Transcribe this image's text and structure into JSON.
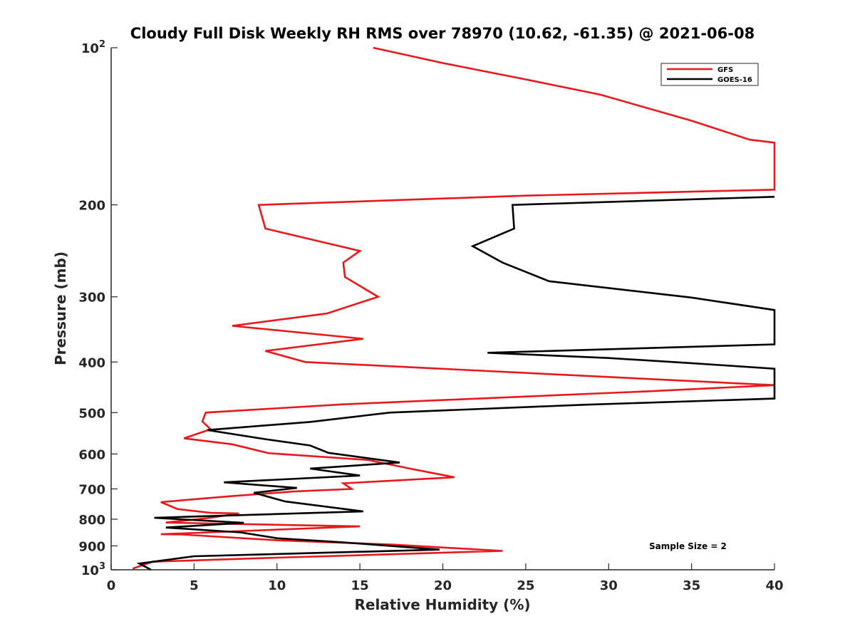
{
  "chart_data": {
    "type": "line",
    "title": "Cloudy Full Disk Weekly RH RMS over 78970 (10.62, -61.35) @ 2021-06-08",
    "xlabel": "Relative Humidity (%)",
    "ylabel": "Pressure (mb)",
    "xlim": [
      0,
      40
    ],
    "ylim": [
      100,
      1000
    ],
    "y_scale": "log",
    "y_reversed": true,
    "grid": false,
    "legend_position": "top-right",
    "x_ticks": [
      0,
      5,
      10,
      15,
      20,
      25,
      30,
      35,
      40
    ],
    "y_ticks": [
      {
        "value": 100,
        "base": "10",
        "exp": "2"
      },
      {
        "value": 200,
        "label": "200"
      },
      {
        "value": 300,
        "label": "300"
      },
      {
        "value": 400,
        "label": "400"
      },
      {
        "value": 500,
        "label": "500"
      },
      {
        "value": 600,
        "label": "600"
      },
      {
        "value": 700,
        "label": "700"
      },
      {
        "value": 800,
        "label": "800"
      },
      {
        "value": 900,
        "label": "900"
      },
      {
        "value": 1000,
        "base": "10",
        "exp": "3"
      }
    ],
    "series": [
      {
        "name": "GFS",
        "color": "#e8191d",
        "points": [
          [
            15.8,
            100
          ],
          [
            20,
            107
          ],
          [
            25,
            115
          ],
          [
            29.5,
            123
          ],
          [
            35,
            138
          ],
          [
            38.5,
            150
          ],
          [
            40,
            152
          ],
          [
            40,
            187
          ],
          [
            25,
            192
          ],
          [
            8.9,
            200
          ],
          [
            9.3,
            222
          ],
          [
            15.0,
            245
          ],
          [
            14.0,
            258
          ],
          [
            14.1,
            275
          ],
          [
            16.1,
            300
          ],
          [
            13.0,
            323
          ],
          [
            7.3,
            341
          ],
          [
            15.2,
            361
          ],
          [
            9.3,
            381
          ],
          [
            11.7,
            400
          ],
          [
            40,
            443
          ],
          [
            32.5,
            455
          ],
          [
            14.0,
            482
          ],
          [
            5.7,
            500
          ],
          [
            5.5,
            520
          ],
          [
            6.0,
            538
          ],
          [
            4.4,
            560
          ],
          [
            7.3,
            575
          ],
          [
            9.5,
            598
          ],
          [
            15.5,
            616
          ],
          [
            18.0,
            640
          ],
          [
            20.7,
            665
          ],
          [
            14.0,
            683
          ],
          [
            14.5,
            700
          ],
          [
            11.0,
            708
          ],
          [
            7.2,
            723
          ],
          [
            3.0,
            742
          ],
          [
            4.0,
            765
          ],
          [
            6.0,
            778
          ],
          [
            7.7,
            780
          ],
          [
            6.0,
            795
          ],
          [
            3.3,
            812
          ],
          [
            15.0,
            826
          ],
          [
            3.0,
            855
          ],
          [
            4.3,
            856
          ],
          [
            10.0,
            878
          ],
          [
            17.0,
            895
          ],
          [
            23.6,
            920
          ],
          [
            10.0,
            948
          ],
          [
            2.5,
            965
          ],
          [
            1.3,
            995
          ]
        ]
      },
      {
        "name": "GOES-16",
        "color": "#000000",
        "points": [
          [
            40,
            193
          ],
          [
            24.2,
            200
          ],
          [
            24.3,
            222
          ],
          [
            21.8,
            240
          ],
          [
            23.6,
            258
          ],
          [
            26.4,
            280
          ],
          [
            35.0,
            301
          ],
          [
            40,
            318
          ],
          [
            40,
            370
          ],
          [
            22.7,
            384
          ],
          [
            30,
            393
          ],
          [
            35,
            402
          ],
          [
            40,
            412
          ],
          [
            40,
            470
          ],
          [
            28.5,
            483
          ],
          [
            16.8,
            500
          ],
          [
            12.0,
            521
          ],
          [
            5.8,
            540
          ],
          [
            9.3,
            562
          ],
          [
            12.0,
            578
          ],
          [
            13.1,
            597
          ],
          [
            17.4,
            623
          ],
          [
            12.0,
            640
          ],
          [
            15.0,
            660
          ],
          [
            6.8,
            680
          ],
          [
            11.2,
            697
          ],
          [
            8.6,
            712
          ],
          [
            10.5,
            740
          ],
          [
            15.2,
            773
          ],
          [
            2.6,
            795
          ],
          [
            8.0,
            813
          ],
          [
            3.3,
            830
          ],
          [
            7.8,
            848
          ],
          [
            10.0,
            870
          ],
          [
            14.0,
            886
          ],
          [
            19.8,
            915
          ],
          [
            5.0,
            942
          ],
          [
            1.7,
            973
          ],
          [
            2.4,
            1000
          ]
        ]
      }
    ],
    "annotations": [
      "Sample Size = 2"
    ]
  }
}
